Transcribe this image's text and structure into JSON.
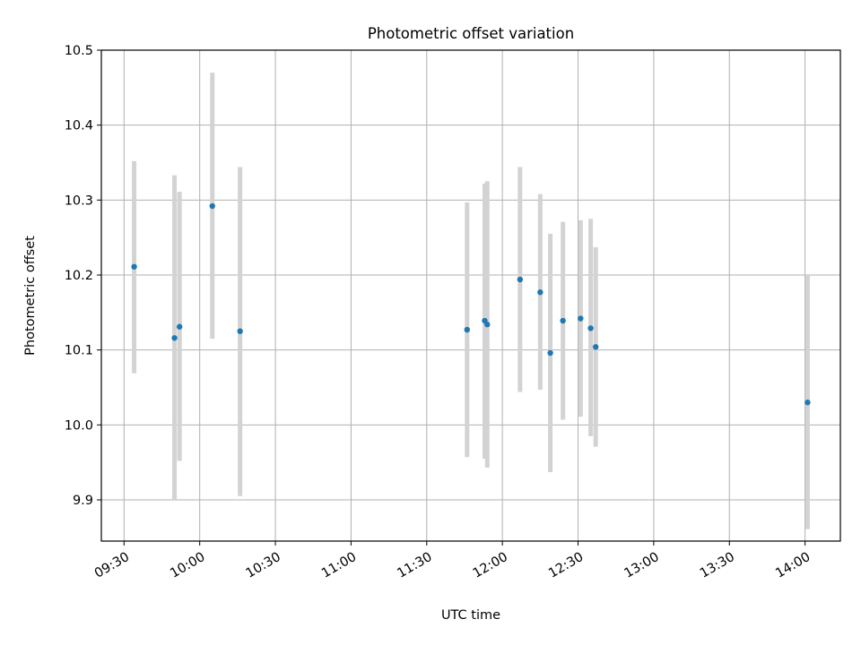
{
  "chart_data": {
    "type": "scatter",
    "title": "Photometric offset variation",
    "xlabel": "UTC time",
    "ylabel": "Photometric offset",
    "grid": true,
    "xlim": [
      "09:21",
      "14:14"
    ],
    "ylim": [
      9.845,
      10.5
    ],
    "x_ticks": [
      "09:30",
      "10:00",
      "10:30",
      "11:00",
      "11:30",
      "12:00",
      "12:30",
      "13:00",
      "13:30",
      "14:00"
    ],
    "y_ticks": [
      9.9,
      10.0,
      10.1,
      10.2,
      10.3,
      10.4,
      10.5
    ],
    "y_tick_labels": [
      "9.9",
      "10.0",
      "10.1",
      "10.2",
      "10.3",
      "10.4",
      "10.5"
    ],
    "colors": {
      "points": "#1f77b4",
      "errorbars": "#d3d3d3",
      "grid": "#b0b0b0"
    },
    "points": [
      {
        "x": "09:34",
        "y": 10.211,
        "low": 10.069,
        "high": 10.352
      },
      {
        "x": "09:50",
        "y": 10.116,
        "low": 9.9,
        "high": 10.333
      },
      {
        "x": "09:52",
        "y": 10.131,
        "low": 9.952,
        "high": 10.311
      },
      {
        "x": "10:05",
        "y": 10.292,
        "low": 10.115,
        "high": 10.47
      },
      {
        "x": "10:16",
        "y": 10.125,
        "low": 9.905,
        "high": 10.344
      },
      {
        "x": "11:46",
        "y": 10.127,
        "low": 9.957,
        "high": 10.297
      },
      {
        "x": "11:53",
        "y": 10.139,
        "low": 9.955,
        "high": 10.322
      },
      {
        "x": "11:54",
        "y": 10.134,
        "low": 9.943,
        "high": 10.325
      },
      {
        "x": "12:07",
        "y": 10.194,
        "low": 10.044,
        "high": 10.344
      },
      {
        "x": "12:15",
        "y": 10.177,
        "low": 10.047,
        "high": 10.308
      },
      {
        "x": "12:19",
        "y": 10.096,
        "low": 9.937,
        "high": 10.255
      },
      {
        "x": "12:24",
        "y": 10.139,
        "low": 10.007,
        "high": 10.271
      },
      {
        "x": "12:31",
        "y": 10.142,
        "low": 10.011,
        "high": 10.273
      },
      {
        "x": "12:35",
        "y": 10.129,
        "low": 9.985,
        "high": 10.275
      },
      {
        "x": "12:37",
        "y": 10.104,
        "low": 9.971,
        "high": 10.237
      },
      {
        "x": "14:01",
        "y": 10.03,
        "low": 9.861,
        "high": 10.2
      }
    ]
  }
}
